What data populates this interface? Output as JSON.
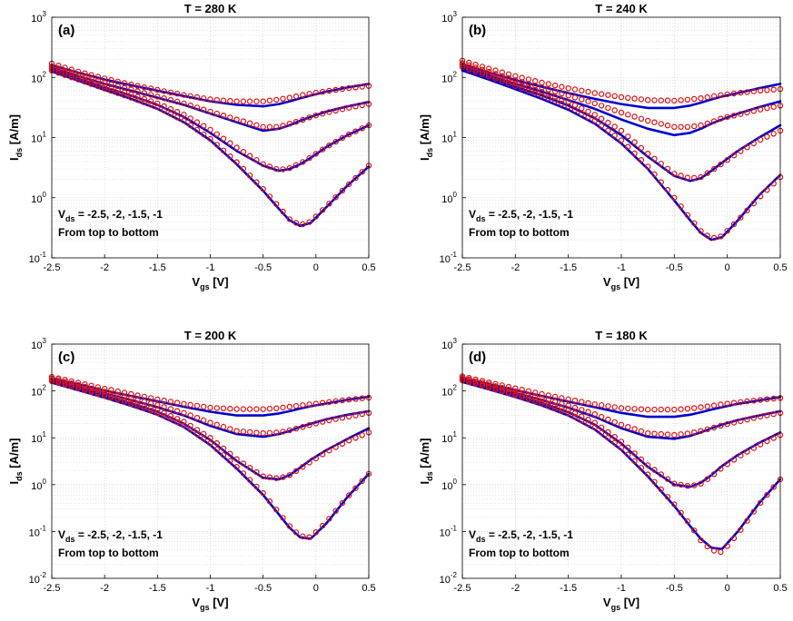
{
  "chart_data": [
    {
      "type": "line",
      "panel_label": "(a)",
      "title": "T = 280 K",
      "xlabel": "V",
      "xlabel_sub": "gs",
      "xlabel_unit": " [V]",
      "ylabel": "I",
      "ylabel_sub": "ds",
      "ylabel_unit": " [A/m]",
      "xlim": [
        -2.5,
        0.5
      ],
      "ylim_exp": [
        -1,
        3
      ],
      "yscale": "log",
      "x_ticks": [
        "-2.5",
        "-2",
        "-1.5",
        "-1",
        "-0.5",
        "0",
        "0.5"
      ],
      "y_ticks": [
        {
          "base": "10",
          "exp": "-1"
        },
        {
          "base": "10",
          "exp": "0"
        },
        {
          "base": "10",
          "exp": "1"
        },
        {
          "base": "10",
          "exp": "2"
        },
        {
          "base": "10",
          "exp": "3"
        }
      ],
      "annotation_line1_prefix": "V",
      "annotation_line1_sub": "ds",
      "annotation_line1_text": " = -2.5, -2, -1.5, -1",
      "annotation_line2": "From top to bottom",
      "x": [
        -2.5,
        -2.25,
        -2.0,
        -1.75,
        -1.5,
        -1.25,
        -1.0,
        -0.75,
        -0.5,
        -0.35,
        -0.25,
        -0.15,
        -0.05,
        0.1,
        0.3,
        0.5
      ],
      "series": [
        {
          "name": "Vds = -2.5 (model)",
          "style": "line",
          "values": [
            160,
            120,
            92,
            74,
            60,
            49,
            40,
            35,
            33,
            36,
            40,
            45,
            50,
            58,
            68,
            78
          ]
        },
        {
          "name": "Vds = -2.5 (data)",
          "style": "markers",
          "values": [
            170,
            125,
            96,
            76,
            62,
            51,
            43,
            40,
            40,
            43,
            46,
            50,
            54,
            59,
            66,
            72
          ]
        },
        {
          "name": "Vds = -2 (model)",
          "style": "line",
          "values": [
            145,
            105,
            78,
            60,
            46,
            35,
            25,
            18,
            13,
            14,
            16,
            19,
            22,
            27,
            33,
            39
          ]
        },
        {
          "name": "Vds = -2 (data)",
          "style": "markers",
          "values": [
            152,
            110,
            82,
            63,
            48,
            37,
            27,
            20,
            15,
            15,
            17,
            19,
            22,
            26,
            31,
            36
          ]
        },
        {
          "name": "Vds = -1.5 (model)",
          "style": "line",
          "values": [
            135,
            95,
            68,
            50,
            35,
            22,
            12,
            6,
            3.4,
            2.8,
            3,
            3.6,
            4.6,
            7,
            11,
            16
          ]
        },
        {
          "name": "Vds = -1.5 (data)",
          "style": "markers",
          "values": [
            140,
            99,
            71,
            52,
            37,
            24,
            13.5,
            6.8,
            3.6,
            2.9,
            3.1,
            3.7,
            4.7,
            7,
            11,
            16
          ]
        },
        {
          "name": "Vds = -1 (model)",
          "style": "line",
          "values": [
            125,
            88,
            62,
            44,
            30,
            18,
            9,
            3.6,
            1.3,
            0.65,
            0.42,
            0.34,
            0.38,
            0.7,
            1.6,
            3.3
          ]
        },
        {
          "name": "Vds = -1 (data)",
          "style": "markers",
          "values": [
            130,
            92,
            65,
            46,
            32,
            19,
            9.5,
            3.9,
            1.4,
            0.7,
            0.44,
            0.35,
            0.4,
            0.72,
            1.6,
            3.4
          ]
        }
      ]
    },
    {
      "type": "line",
      "panel_label": "(b)",
      "title": "T = 240 K",
      "xlabel": "V",
      "xlabel_sub": "gs",
      "xlabel_unit": " [V]",
      "ylabel": "I",
      "ylabel_sub": "ds",
      "ylabel_unit": " [A/m]",
      "xlim": [
        -2.5,
        0.5
      ],
      "ylim_exp": [
        -1,
        3
      ],
      "yscale": "log",
      "x_ticks": [
        "-2.5",
        "-2",
        "-1.5",
        "-1",
        "-0.5",
        "0",
        "0.5"
      ],
      "y_ticks": [
        {
          "base": "10",
          "exp": "-1"
        },
        {
          "base": "10",
          "exp": "0"
        },
        {
          "base": "10",
          "exp": "1"
        },
        {
          "base": "10",
          "exp": "2"
        },
        {
          "base": "10",
          "exp": "3"
        }
      ],
      "annotation_line1_prefix": "V",
      "annotation_line1_sub": "ds",
      "annotation_line1_text": " = -2.5, -2, -1.5, -1",
      "annotation_line2": "From top to bottom",
      "x": [
        -2.5,
        -2.25,
        -2.0,
        -1.75,
        -1.5,
        -1.25,
        -1.0,
        -0.75,
        -0.5,
        -0.35,
        -0.25,
        -0.15,
        -0.05,
        0.1,
        0.3,
        0.5
      ],
      "series": [
        {
          "name": "Vds = -2.5 (model)",
          "style": "line",
          "values": [
            165,
            120,
            90,
            70,
            55,
            44,
            36,
            31,
            31,
            34,
            38,
            43,
            48,
            55,
            66,
            78
          ]
        },
        {
          "name": "Vds = -2.5 (data)",
          "style": "markers",
          "values": [
            190,
            140,
            105,
            82,
            66,
            55,
            47,
            42,
            41,
            43,
            45,
            48,
            51,
            55,
            60,
            64
          ]
        },
        {
          "name": "Vds = -2 (model)",
          "style": "line",
          "values": [
            150,
            108,
            78,
            58,
            42,
            30,
            20,
            14,
            11,
            12,
            14,
            17,
            20,
            25,
            32,
            40
          ]
        },
        {
          "name": "Vds = -2 (data)",
          "style": "markers",
          "values": [
            172,
            124,
            90,
            68,
            50,
            37,
            26,
            19,
            15,
            15,
            16,
            18,
            21,
            24,
            29,
            34
          ]
        },
        {
          "name": "Vds = -1.5 (model)",
          "style": "line",
          "values": [
            140,
            100,
            70,
            50,
            34,
            21,
            11,
            4.8,
            2.3,
            1.9,
            2.1,
            2.8,
            3.8,
            6,
            10,
            16
          ]
        },
        {
          "name": "Vds = -1.5 (data)",
          "style": "markers",
          "values": [
            160,
            112,
            80,
            57,
            39,
            24,
            13,
            5.4,
            2.5,
            2.1,
            2.2,
            2.8,
            3.7,
            5.6,
            9,
            13
          ]
        },
        {
          "name": "Vds = -1 (model)",
          "style": "line",
          "values": [
            130,
            92,
            64,
            44,
            29,
            17,
            8,
            3,
            0.9,
            0.42,
            0.26,
            0.2,
            0.22,
            0.42,
            1.1,
            2.4
          ]
        },
        {
          "name": "Vds = -1 (data)",
          "style": "markers",
          "values": [
            148,
            104,
            72,
            50,
            33,
            19,
            9,
            3.3,
            1,
            0.45,
            0.28,
            0.21,
            0.23,
            0.42,
            1,
            2.2
          ]
        }
      ]
    },
    {
      "type": "line",
      "panel_label": "(c)",
      "title": "T = 200 K",
      "xlabel": "V",
      "xlabel_sub": "gs",
      "xlabel_unit": " [V]",
      "ylabel": "I",
      "ylabel_sub": "ds",
      "ylabel_unit": " [A/m]",
      "xlim": [
        -2.5,
        0.5
      ],
      "ylim_exp": [
        -2,
        3
      ],
      "yscale": "log",
      "x_ticks": [
        "-2.5",
        "-2",
        "-1.5",
        "-1",
        "-0.5",
        "0",
        "0.5"
      ],
      "y_ticks": [
        {
          "base": "10",
          "exp": "-2"
        },
        {
          "base": "10",
          "exp": "-1"
        },
        {
          "base": "10",
          "exp": "0"
        },
        {
          "base": "10",
          "exp": "1"
        },
        {
          "base": "10",
          "exp": "2"
        },
        {
          "base": "10",
          "exp": "3"
        }
      ],
      "annotation_line1_prefix": "V",
      "annotation_line1_sub": "ds",
      "annotation_line1_text": " = -2.5, -2, -1.5, -1",
      "annotation_line2": "From top to bottom",
      "x": [
        -2.5,
        -2.25,
        -2.0,
        -1.75,
        -1.5,
        -1.25,
        -1.0,
        -0.75,
        -0.5,
        -0.35,
        -0.25,
        -0.15,
        -0.05,
        0.1,
        0.3,
        0.5
      ],
      "series": [
        {
          "name": "Vds = -2.5 (model)",
          "style": "line",
          "values": [
            185,
            138,
            102,
            78,
            60,
            46,
            36,
            30,
            30,
            33,
            37,
            42,
            47,
            54,
            65,
            75
          ]
        },
        {
          "name": "Vds = -2.5 (data)",
          "style": "markers",
          "values": [
            200,
            150,
            112,
            86,
            66,
            53,
            44,
            41,
            41,
            43,
            46,
            49,
            52,
            57,
            65,
            72
          ]
        },
        {
          "name": "Vds = -2 (model)",
          "style": "line",
          "values": [
            170,
            122,
            88,
            64,
            45,
            30,
            18,
            12,
            10.5,
            12,
            14,
            17,
            20,
            25,
            31,
            37
          ]
        },
        {
          "name": "Vds = -2 (data)",
          "style": "markers",
          "values": [
            185,
            134,
            96,
            70,
            50,
            34,
            21,
            14,
            12.5,
            13,
            14.5,
            16.5,
            19,
            23,
            28,
            34
          ]
        },
        {
          "name": "Vds = -1.5 (model)",
          "style": "line",
          "values": [
            160,
            112,
            78,
            54,
            36,
            20,
            9,
            3.2,
            1.4,
            1.3,
            1.6,
            2.3,
            3.4,
            5.5,
            9.5,
            16
          ]
        },
        {
          "name": "Vds = -1.5 (data)",
          "style": "markers",
          "values": [
            172,
            122,
            85,
            59,
            39,
            22,
            10,
            3.5,
            1.5,
            1.35,
            1.6,
            2.2,
            3.1,
            5,
            8.5,
            13
          ]
        },
        {
          "name": "Vds = -1 (model)",
          "style": "line",
          "values": [
            150,
            104,
            72,
            48,
            31,
            17,
            7,
            2.2,
            0.6,
            0.23,
            0.12,
            0.075,
            0.07,
            0.15,
            0.55,
            1.7
          ]
        },
        {
          "name": "Vds = -1 (data)",
          "style": "markers",
          "values": [
            162,
            114,
            79,
            53,
            34,
            18.5,
            7.6,
            2.4,
            0.66,
            0.25,
            0.13,
            0.08,
            0.075,
            0.16,
            0.55,
            1.7
          ]
        }
      ]
    },
    {
      "type": "line",
      "panel_label": "(d)",
      "title": "T = 180 K",
      "xlabel": "V",
      "xlabel_sub": "gs",
      "xlabel_unit": " [V]",
      "ylabel": "I",
      "ylabel_sub": "ds",
      "ylabel_unit": " [A/m]",
      "xlim": [
        -2.5,
        0.5
      ],
      "ylim_exp": [
        -2,
        3
      ],
      "yscale": "log",
      "x_ticks": [
        "-2.5",
        "-2",
        "-1.5",
        "-1",
        "-0.5",
        "0",
        "0.5"
      ],
      "y_ticks": [
        {
          "base": "10",
          "exp": "-2"
        },
        {
          "base": "10",
          "exp": "-1"
        },
        {
          "base": "10",
          "exp": "0"
        },
        {
          "base": "10",
          "exp": "1"
        },
        {
          "base": "10",
          "exp": "2"
        },
        {
          "base": "10",
          "exp": "3"
        }
      ],
      "annotation_line1_prefix": "V",
      "annotation_line1_sub": "ds",
      "annotation_line1_text": " = -2.5, -2, -1.5, -1",
      "annotation_line2": "From top to bottom",
      "x": [
        -2.5,
        -2.25,
        -2.0,
        -1.75,
        -1.5,
        -1.25,
        -1.0,
        -0.75,
        -0.5,
        -0.35,
        -0.25,
        -0.15,
        -0.05,
        0.1,
        0.3,
        0.5
      ],
      "series": [
        {
          "name": "Vds = -2.5 (model)",
          "style": "line",
          "values": [
            190,
            140,
            104,
            78,
            59,
            45,
            34,
            28,
            28,
            31,
            35,
            40,
            45,
            53,
            63,
            74
          ]
        },
        {
          "name": "Vds = -2.5 (data)",
          "style": "markers",
          "values": [
            205,
            152,
            114,
            86,
            66,
            52,
            43,
            40,
            40,
            42,
            45,
            48,
            52,
            57,
            64,
            71
          ]
        },
        {
          "name": "Vds = -2 (model)",
          "style": "line",
          "values": [
            175,
            126,
            90,
            64,
            44,
            28,
            16,
            10.5,
            9.5,
            11,
            13,
            16,
            19,
            24,
            30,
            37
          ]
        },
        {
          "name": "Vds = -2 (data)",
          "style": "markers",
          "values": [
            190,
            138,
            98,
            70,
            49,
            32,
            19,
            12.5,
            11.5,
            12.5,
            14,
            16,
            18.5,
            22,
            28,
            34
          ]
        },
        {
          "name": "Vds = -1.5 (model)",
          "style": "line",
          "values": [
            165,
            116,
            80,
            55,
            35,
            19,
            7.5,
            2.4,
            1.0,
            0.9,
            1.1,
            1.6,
            2.5,
            4.3,
            7.8,
            13
          ]
        },
        {
          "name": "Vds = -1.5 (data)",
          "style": "markers",
          "values": [
            178,
            126,
            87,
            60,
            39,
            21,
            8.3,
            2.6,
            1.05,
            0.92,
            1.05,
            1.5,
            2.3,
            3.9,
            7,
            11.5
          ]
        },
        {
          "name": "Vds = -1 (model)",
          "style": "line",
          "values": [
            155,
            108,
            74,
            49,
            30,
            15,
            5.5,
            1.5,
            0.35,
            0.13,
            0.07,
            0.045,
            0.042,
            0.1,
            0.4,
            1.3
          ]
        },
        {
          "name": "Vds = -1 (data)",
          "style": "markers",
          "values": [
            168,
            118,
            81,
            54,
            33,
            16.5,
            6.1,
            1.65,
            0.38,
            0.14,
            0.065,
            0.04,
            0.036,
            0.09,
            0.38,
            1.3
          ]
        }
      ]
    }
  ],
  "colors": {
    "model_line": "#0000cc",
    "data_marker": "#dd1111",
    "grid": "#c8c8c8",
    "axis": "#000000"
  }
}
